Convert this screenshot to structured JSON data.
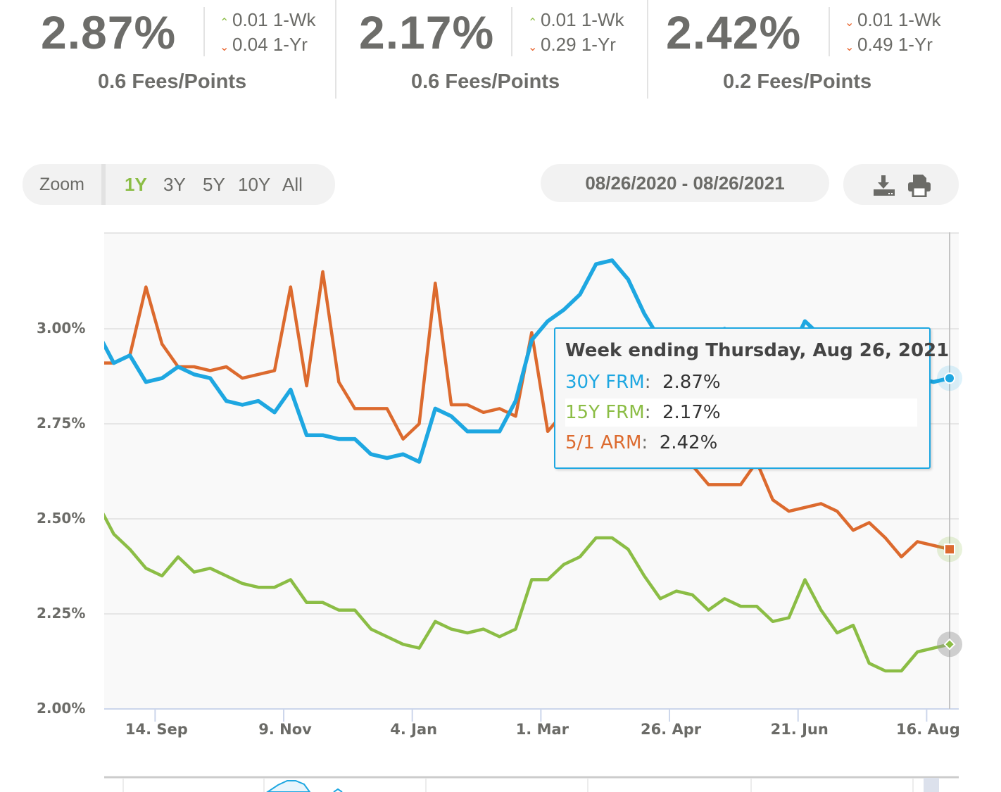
{
  "stats": [
    {
      "rate": "2.87%",
      "wk_dir": "up",
      "wk_change": "0.01 1-Wk",
      "yr_dir": "down",
      "yr_change": "0.04 1-Yr",
      "fees": "0.6 Fees/Points"
    },
    {
      "rate": "2.17%",
      "wk_dir": "up",
      "wk_change": "0.01 1-Wk",
      "yr_dir": "down",
      "yr_change": "0.29 1-Yr",
      "fees": "0.6 Fees/Points"
    },
    {
      "rate": "2.42%",
      "wk_dir": "down",
      "wk_change": "0.01 1-Wk",
      "yr_dir": "down",
      "yr_change": "0.49 1-Yr",
      "fees": "0.2 Fees/Points"
    }
  ],
  "toolbar": {
    "zoom_label": "Zoom",
    "zoom_options": [
      "1Y",
      "3Y",
      "5Y",
      "10Y",
      "All"
    ],
    "zoom_selected": "1Y",
    "date_range": "08/26/2020 - 08/26/2021",
    "download_icon": "download-icon",
    "print_icon": "printer-icon"
  },
  "colors": {
    "30y": "#1ea7e1",
    "15y": "#8bbd45",
    "arm": "#dc6a2e",
    "up": "#8bbd45",
    "down": "#e8632c"
  },
  "tooltip": {
    "header": "Week ending Thursday, Aug 26, 2021",
    "rows": [
      {
        "label": "30Y FRM",
        "value": "2.87%"
      },
      {
        "label": "15Y FRM",
        "value": "2.17%"
      },
      {
        "label": "5/1 ARM",
        "value": "2.42%"
      }
    ]
  },
  "chart_data": {
    "type": "line",
    "ylim": [
      2.0,
      3.25
    ],
    "yticks": [
      "2.00%",
      "2.25%",
      "2.50%",
      "2.75%",
      "3.00%"
    ],
    "ytick_values": [
      2.0,
      2.25,
      2.5,
      2.75,
      3.0
    ],
    "xticks": [
      "14. Sep",
      "9. Nov",
      "4. Jan",
      "1. Mar",
      "26. Apr",
      "21. Jun",
      "16. Aug"
    ],
    "xtick_dates": [
      "2020-09-14",
      "2020-11-09",
      "2021-01-04",
      "2021-03-01",
      "2021-04-26",
      "2021-06-21",
      "2021-08-16"
    ],
    "xlim": [
      "2020-08-24",
      "2021-08-30"
    ],
    "grid": true,
    "crosshair_date": "2021-08-26",
    "x": [
      "2020-08-20",
      "2020-08-27",
      "2020-09-03",
      "2020-09-10",
      "2020-09-17",
      "2020-09-24",
      "2020-10-01",
      "2020-10-08",
      "2020-10-15",
      "2020-10-22",
      "2020-10-29",
      "2020-11-05",
      "2020-11-12",
      "2020-11-19",
      "2020-11-26",
      "2020-12-03",
      "2020-12-10",
      "2020-12-17",
      "2020-12-24",
      "2020-12-31",
      "2021-01-07",
      "2021-01-14",
      "2021-01-21",
      "2021-01-28",
      "2021-02-04",
      "2021-02-11",
      "2021-02-18",
      "2021-02-25",
      "2021-03-04",
      "2021-03-11",
      "2021-03-18",
      "2021-03-25",
      "2021-04-01",
      "2021-04-08",
      "2021-04-15",
      "2021-04-22",
      "2021-04-29",
      "2021-05-06",
      "2021-05-13",
      "2021-05-20",
      "2021-05-27",
      "2021-06-03",
      "2021-06-10",
      "2021-06-17",
      "2021-06-24",
      "2021-07-01",
      "2021-07-08",
      "2021-07-15",
      "2021-07-22",
      "2021-07-29",
      "2021-08-05",
      "2021-08-12",
      "2021-08-19",
      "2021-08-26"
    ],
    "series": [
      {
        "name": "30Y FRM",
        "key": "30y",
        "values": [
          2.99,
          2.91,
          2.93,
          2.86,
          2.87,
          2.9,
          2.88,
          2.87,
          2.81,
          2.8,
          2.81,
          2.78,
          2.84,
          2.72,
          2.72,
          2.71,
          2.71,
          2.67,
          2.66,
          2.67,
          2.65,
          2.79,
          2.77,
          2.73,
          2.73,
          2.73,
          2.81,
          2.97,
          3.02,
          3.05,
          3.09,
          3.17,
          3.18,
          3.13,
          3.04,
          2.97,
          2.98,
          2.96,
          2.94,
          3.0,
          2.95,
          2.99,
          2.96,
          2.93,
          3.02,
          2.98,
          2.9,
          2.88,
          2.78,
          2.8,
          2.77,
          2.87,
          2.86,
          2.87
        ]
      },
      {
        "name": "15Y FRM",
        "key": "15y",
        "values": [
          2.54,
          2.46,
          2.42,
          2.37,
          2.35,
          2.4,
          2.36,
          2.37,
          2.35,
          2.33,
          2.32,
          2.32,
          2.34,
          2.28,
          2.28,
          2.26,
          2.26,
          2.21,
          2.19,
          2.17,
          2.16,
          2.23,
          2.21,
          2.2,
          2.21,
          2.19,
          2.21,
          2.34,
          2.34,
          2.38,
          2.4,
          2.45,
          2.45,
          2.42,
          2.35,
          2.29,
          2.31,
          2.3,
          2.26,
          2.29,
          2.27,
          2.27,
          2.23,
          2.24,
          2.34,
          2.26,
          2.2,
          2.22,
          2.12,
          2.1,
          2.1,
          2.15,
          2.16,
          2.17
        ]
      },
      {
        "name": "5/1 ARM",
        "key": "arm",
        "values": [
          2.91,
          2.91,
          2.93,
          3.11,
          2.96,
          2.9,
          2.9,
          2.89,
          2.9,
          2.87,
          2.88,
          2.89,
          3.11,
          2.85,
          3.15,
          2.86,
          2.79,
          2.79,
          2.79,
          2.71,
          2.75,
          3.12,
          2.8,
          2.8,
          2.78,
          2.79,
          2.77,
          2.99,
          2.73,
          2.78,
          2.79,
          2.84,
          2.84,
          2.83,
          2.83,
          2.77,
          2.7,
          2.64,
          2.59,
          2.59,
          2.59,
          2.65,
          2.55,
          2.52,
          2.53,
          2.54,
          2.52,
          2.47,
          2.49,
          2.45,
          2.4,
          2.44,
          2.43,
          2.42
        ]
      }
    ]
  }
}
